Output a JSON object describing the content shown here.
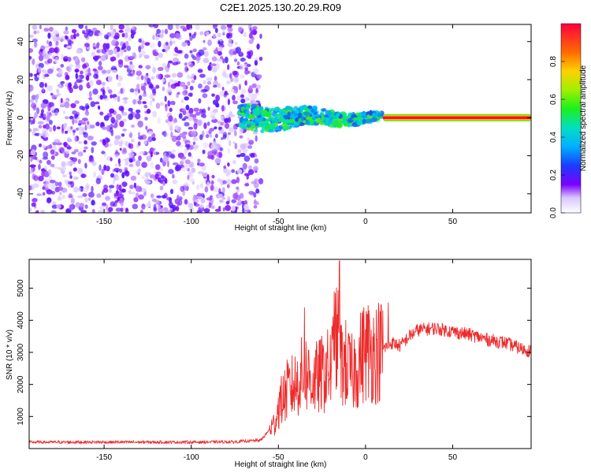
{
  "title": "C2E1.2025.130.20.29.R09",
  "colors": {
    "axis": "#000000",
    "snr_line": "#ee2a2a",
    "scatter": "#6a00e6",
    "background": "#ffffff"
  },
  "chart_data": [
    {
      "type": "heatmap",
      "xlabel": "Height of straight line (km)",
      "ylabel": "Frequency (Hz)",
      "xlim": [
        -193,
        95
      ],
      "ylim": [
        -50,
        49
      ],
      "x_ticks": [
        "-150",
        "-100",
        "-50",
        "0",
        "50"
      ],
      "y_ticks": [
        "40",
        "20",
        "0",
        "-20",
        "-40"
      ],
      "description_regions": [
        {
          "x_range": [
            -193,
            -60
          ],
          "freq_range": [
            -50,
            49
          ],
          "amplitude_range": [
            0.05,
            0.2
          ]
        },
        {
          "x_range": [
            -72,
            10
          ],
          "freq_center": 0,
          "freq_half_width": 7,
          "amplitude_range": [
            0.25,
            0.6
          ]
        },
        {
          "x_range": [
            10,
            95
          ],
          "freq_center": 0,
          "freq_half_width": 1.5,
          "amplitude_range": [
            0.85,
            1.0
          ]
        }
      ],
      "colorbar": {
        "label": "Normalized spectral amplitude",
        "range": [
          0.0,
          1.0
        ],
        "ticks": [
          "0.0",
          "0.2",
          "0.4",
          "0.6",
          "0.8"
        ]
      }
    },
    {
      "type": "line",
      "xlabel": "Height of straight line (km)",
      "ylabel": "SNR (10 * v/v)",
      "xlim": [
        -193,
        95
      ],
      "ylim": [
        0,
        5900
      ],
      "x_ticks": [
        "-150",
        "-100",
        "-50",
        "0",
        "50"
      ],
      "y_ticks": [
        "1000",
        "2000",
        "3000",
        "4000",
        "5000"
      ],
      "series": [
        {
          "x": [
            -193,
            -150,
            -100,
            -75,
            -60,
            -52,
            -50,
            -45,
            -40,
            -35,
            -30,
            -25,
            -20,
            -16,
            -15,
            -12,
            -8,
            -5,
            0,
            5,
            10,
            15,
            20,
            25,
            30,
            40,
            50,
            60,
            70,
            80,
            90,
            95
          ],
          "y": [
            200,
            200,
            200,
            210,
            260,
            800,
            1300,
            1800,
            2000,
            2400,
            2100,
            2300,
            2500,
            3500,
            2600,
            2700,
            2300,
            2600,
            3100,
            3000,
            3100,
            3300,
            3200,
            3500,
            3700,
            3750,
            3650,
            3550,
            3400,
            3300,
            3100,
            3050
          ],
          "peaks": [
            {
              "x": -15,
              "y": 5850
            },
            {
              "x": -18,
              "y": 4900
            },
            {
              "x": -35,
              "y": 4400
            },
            {
              "x": 13,
              "y": 4550
            }
          ]
        }
      ]
    }
  ]
}
